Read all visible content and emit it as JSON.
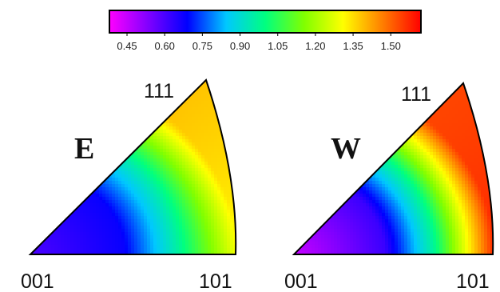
{
  "chart_data": {
    "type": "heatmap",
    "description_free": true,
    "colorbar": {
      "ticks": [
        "0.45",
        "0.60",
        "0.75",
        "0.90",
        "1.05",
        "1.20",
        "1.35",
        "1.50"
      ],
      "range": [
        0.38,
        1.62
      ],
      "colors": [
        "#ff00ff",
        "#8000ff",
        "#0000ff",
        "#00c8ff",
        "#00ff80",
        "#80ff00",
        "#ffff00",
        "#ff8000",
        "#ff0000"
      ]
    },
    "panels": [
      {
        "title": "E",
        "corners": {
          "bottom_left": "001",
          "top": "111",
          "bottom_right": "101"
        },
        "values_at": {
          "001": 0.6,
          "center_low": 0.68,
          "mid": 0.95,
          "101": 1.3,
          "111": 1.45
        },
        "edge_high": 1.35
      },
      {
        "title": "W",
        "corners": {
          "bottom_left": "001",
          "top": "111",
          "bottom_right": "101"
        },
        "values_at": {
          "001": 0.45,
          "center_low": 0.62,
          "mid": 0.98,
          "101": 1.58,
          "111": 1.5
        },
        "edge_high": 1.55
      }
    ]
  }
}
